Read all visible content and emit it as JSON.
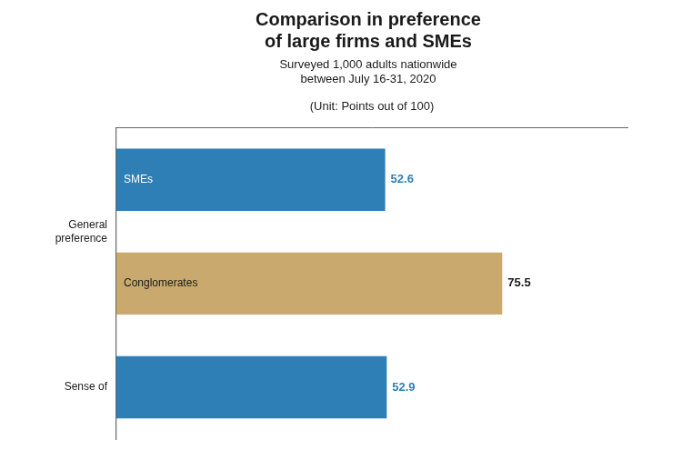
{
  "chart_data": {
    "type": "bar",
    "orientation": "horizontal",
    "title": "Comparison in preference\nof large firms and SMEs",
    "subtitle": "Surveyed 1,000 adults nationwide\nbetween July 16-31, 2020",
    "xlabel": "(Unit: Points out of 100)",
    "categories": [
      "SMEs",
      "Conglomerates",
      null
    ],
    "groups": [
      "General\npreference",
      "General\npreference",
      "Sense of"
    ],
    "values": [
      52.6,
      75.5,
      52.9
    ],
    "colors": [
      "#2e7fb5",
      "#c9a96e",
      "#2e7fb5"
    ],
    "xlim": [
      0,
      100
    ],
    "xticks": [],
    "grid": false,
    "legend": false,
    "data_labels": true,
    "tick_labels": false
  }
}
